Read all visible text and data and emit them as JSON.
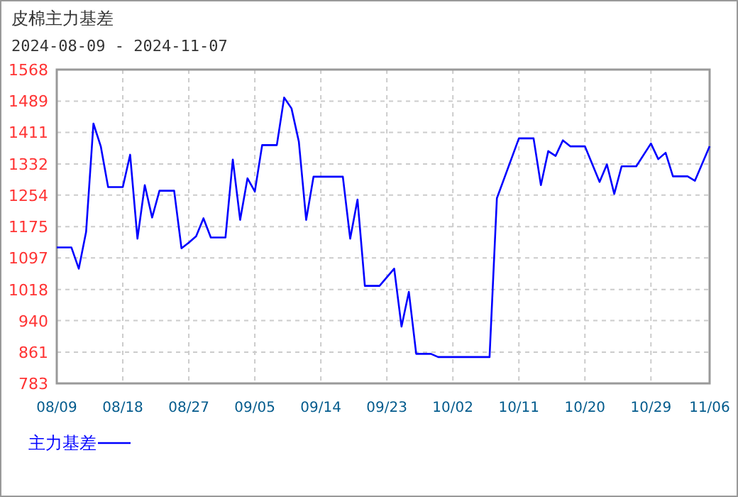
{
  "chart_data": {
    "type": "line",
    "title": "皮棉主力基差",
    "subtitle": "2024-08-09 - 2024-11-07",
    "x": [
      "2024-08-09",
      "2024-08-11",
      "2024-08-12",
      "2024-08-13",
      "2024-08-14",
      "2024-08-15",
      "2024-08-16",
      "2024-08-18",
      "2024-08-19",
      "2024-08-20",
      "2024-08-21",
      "2024-08-22",
      "2024-08-23",
      "2024-08-25",
      "2024-08-26",
      "2024-08-27",
      "2024-08-28",
      "2024-08-29",
      "2024-08-30",
      "2024-09-01",
      "2024-09-02",
      "2024-09-03",
      "2024-09-04",
      "2024-09-05",
      "2024-09-06",
      "2024-09-08",
      "2024-09-09",
      "2024-09-10",
      "2024-09-11",
      "2024-09-12",
      "2024-09-13",
      "2024-09-17",
      "2024-09-18",
      "2024-09-19",
      "2024-09-20",
      "2024-09-22",
      "2024-09-24",
      "2024-09-25",
      "2024-09-26",
      "2024-09-27",
      "2024-09-29",
      "2024-09-30",
      "2024-10-07",
      "2024-10-08",
      "2024-10-11",
      "2024-10-13",
      "2024-10-14",
      "2024-10-15",
      "2024-10-16",
      "2024-10-17",
      "2024-10-18",
      "2024-10-20",
      "2024-10-22",
      "2024-10-23",
      "2024-10-24",
      "2024-10-25",
      "2024-10-27",
      "2024-10-29",
      "2024-10-30",
      "2024-10-31",
      "2024-11-01",
      "2024-11-03",
      "2024-11-04",
      "2024-11-06"
    ],
    "series": [
      {
        "name": "主力基差",
        "color": "#0000ff",
        "values": [
          1123,
          1123,
          1070,
          1162,
          1433,
          1376,
          1274,
          1274,
          1355,
          1145,
          1279,
          1198,
          1265,
          1265,
          1121,
          1135,
          1151,
          1196,
          1148,
          1148,
          1343,
          1192,
          1296,
          1263,
          1379,
          1379,
          1498,
          1471,
          1388,
          1192,
          1300,
          1300,
          1145,
          1243,
          1027,
          1027,
          1070,
          925,
          1012,
          857,
          857,
          849,
          849,
          1246,
          1396,
          1396,
          1279,
          1364,
          1352,
          1391,
          1376,
          1376,
          1287,
          1331,
          1257,
          1326,
          1326,
          1383,
          1344,
          1360,
          1301,
          1301,
          1290,
          1376
        ]
      }
    ],
    "xlim": [
      "2024-08-09",
      "2024-11-06"
    ],
    "xticks": [
      {
        "value": "2024-08-09",
        "label": "08/09"
      },
      {
        "value": "2024-08-18",
        "label": "08/18"
      },
      {
        "value": "2024-08-27",
        "label": "08/27"
      },
      {
        "value": "2024-09-05",
        "label": "09/05"
      },
      {
        "value": "2024-09-14",
        "label": "09/14"
      },
      {
        "value": "2024-09-23",
        "label": "09/23"
      },
      {
        "value": "2024-10-02",
        "label": "10/02"
      },
      {
        "value": "2024-10-11",
        "label": "10/11"
      },
      {
        "value": "2024-10-20",
        "label": "10/20"
      },
      {
        "value": "2024-10-29",
        "label": "10/29"
      },
      {
        "value": "2024-11-06",
        "label": "11/06"
      }
    ],
    "ylim": [
      783,
      1568
    ],
    "yticks": [
      783,
      861,
      940,
      1018,
      1097,
      1175,
      1254,
      1332,
      1411,
      1489,
      1568
    ],
    "grid": true,
    "legend": "bottom",
    "marker": "none",
    "line_style": "solid"
  }
}
